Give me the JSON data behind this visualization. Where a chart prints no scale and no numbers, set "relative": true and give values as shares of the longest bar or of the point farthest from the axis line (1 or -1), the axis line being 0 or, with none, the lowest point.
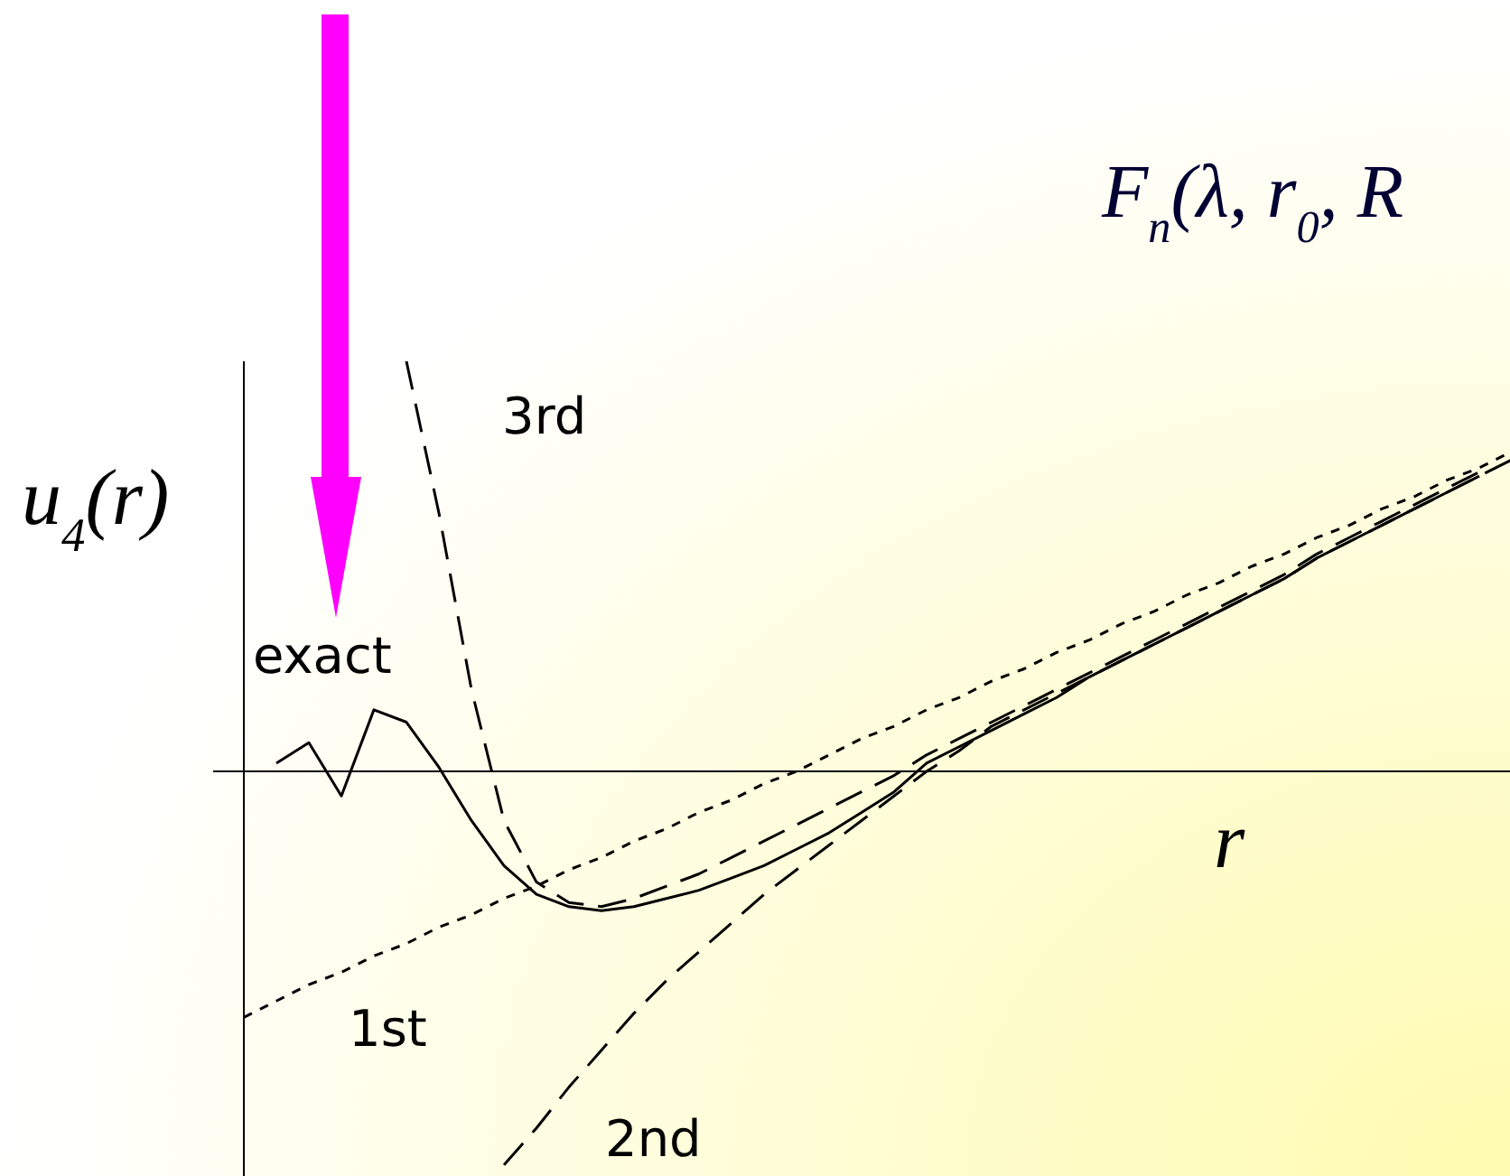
{
  "chart_data": {
    "type": "line",
    "relative": true,
    "ylabel": "u$_{4}$(r)",
    "xlabel": "r",
    "annotations": [
      "F$_{n}$(λ, r$_{0}$, R"
    ],
    "categories": [
      null,
      null,
      null,
      null,
      null,
      null,
      null,
      null,
      null,
      null,
      null,
      null,
      null,
      null,
      null,
      null,
      null,
      null,
      null,
      null,
      null,
      null,
      null,
      null,
      null,
      null,
      null,
      null,
      null,
      null,
      null,
      null,
      null,
      null,
      null,
      null,
      null,
      null,
      null,
      null
    ],
    "series": [
      {
        "name": "exact",
        "color": "#000000",
        "line_style": "solid",
        "values": [
          null,
          0.02,
          0.07,
          -0.06,
          0.15,
          0.12,
          0.01,
          -0.12,
          -0.23,
          -0.3,
          -0.33,
          -0.34,
          -0.33,
          -0.31,
          -0.29,
          -0.26,
          -0.23,
          -0.19,
          -0.15,
          -0.1,
          -0.05,
          0.02,
          0.06,
          0.1,
          0.14,
          0.18,
          0.23,
          0.27,
          0.31,
          0.35,
          0.39,
          0.43,
          0.47,
          0.52,
          0.56,
          0.6,
          0.64,
          0.68,
          0.72,
          null
        ]
      },
      {
        "name": "1st",
        "color": "#000000",
        "line_style": "dotted",
        "values": [
          -0.6,
          -0.56,
          -0.52,
          -0.49,
          -0.45,
          -0.42,
          -0.38,
          -0.35,
          -0.31,
          -0.28,
          -0.24,
          -0.21,
          -0.17,
          -0.14,
          -0.1,
          -0.07,
          -0.03,
          0.0,
          0.04,
          0.08,
          0.11,
          0.15,
          0.18,
          0.22,
          0.25,
          0.29,
          0.32,
          0.36,
          0.39,
          0.43,
          0.46,
          0.5,
          0.53,
          0.57,
          0.6,
          0.64,
          0.67,
          0.71,
          0.74,
          0.78
        ]
      },
      {
        "name": "2nd",
        "color": "#000000",
        "line_style": "dashed",
        "values": [
          null,
          null,
          null,
          null,
          null,
          null,
          null,
          null,
          -0.96,
          -0.87,
          -0.77,
          -0.68,
          -0.59,
          -0.51,
          -0.44,
          -0.37,
          -0.3,
          -0.24,
          -0.18,
          -0.12,
          -0.06,
          0.0,
          0.05,
          0.11,
          0.15,
          0.19,
          0.23,
          0.27,
          0.31,
          0.35,
          0.39,
          0.43,
          0.47,
          0.52,
          0.56,
          0.6,
          0.64,
          0.68,
          0.72,
          0.76
        ]
      },
      {
        "name": "3rd",
        "color": "#000000",
        "line_style": "dashed",
        "values": [
          null,
          null,
          null,
          null,
          null,
          1.0,
          0.63,
          0.2,
          -0.12,
          -0.27,
          -0.32,
          -0.33,
          -0.31,
          -0.28,
          -0.25,
          -0.21,
          -0.17,
          -0.13,
          -0.09,
          -0.05,
          -0.01,
          0.04,
          0.08,
          0.12,
          0.16,
          0.2,
          0.24,
          0.28,
          0.32,
          0.36,
          0.4,
          0.44,
          0.48,
          0.53,
          0.57,
          0.61,
          0.65,
          0.69,
          0.73,
          null
        ]
      }
    ]
  }
}
